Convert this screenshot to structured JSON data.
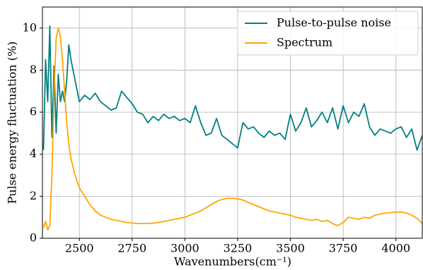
{
  "chart_data": {
    "type": "line",
    "xlabel": "Wavenumbers(cm⁻¹)",
    "ylabel": "Pulse energy fluctuation (%)",
    "x": [
      2330,
      2340,
      2350,
      2360,
      2370,
      2380,
      2390,
      2400,
      2410,
      2420,
      2430,
      2440,
      2450,
      2460,
      2480,
      2500,
      2525,
      2550,
      2575,
      2600,
      2625,
      2650,
      2675,
      2700,
      2725,
      2750,
      2775,
      2800,
      2825,
      2850,
      2875,
      2900,
      2925,
      2950,
      2975,
      3000,
      3025,
      3050,
      3075,
      3100,
      3125,
      3150,
      3175,
      3200,
      3225,
      3250,
      3275,
      3300,
      3325,
      3350,
      3375,
      3400,
      3425,
      3450,
      3475,
      3500,
      3525,
      3550,
      3575,
      3600,
      3625,
      3650,
      3675,
      3700,
      3725,
      3750,
      3775,
      3800,
      3825,
      3850,
      3875,
      3900,
      3925,
      3950,
      3975,
      4000,
      4025,
      4050,
      4075,
      4100,
      4125
    ],
    "series": [
      {
        "name": "Pulse-to-pulse noise",
        "color": "#008080",
        "values": [
          4.2,
          8.5,
          6.5,
          10.1,
          4.8,
          8.2,
          5.0,
          7.8,
          6.5,
          7.0,
          6.5,
          7.5,
          9.2,
          8.5,
          7.5,
          6.5,
          6.8,
          6.6,
          6.9,
          6.5,
          6.3,
          6.1,
          6.2,
          7.0,
          6.7,
          6.4,
          6.0,
          5.9,
          5.5,
          5.8,
          5.6,
          5.9,
          5.7,
          5.8,
          5.6,
          5.7,
          5.5,
          6.3,
          5.5,
          4.9,
          5.0,
          5.7,
          4.9,
          4.7,
          4.5,
          4.3,
          5.5,
          5.2,
          5.3,
          5.0,
          4.8,
          5.1,
          4.9,
          5.0,
          4.7,
          5.9,
          5.1,
          5.5,
          6.2,
          5.3,
          5.6,
          6.0,
          5.5,
          6.2,
          5.2,
          6.3,
          5.5,
          6.0,
          5.8,
          6.4,
          5.3,
          4.9,
          5.2,
          5.1,
          5.0,
          5.2,
          5.3,
          4.8,
          5.2,
          4.2,
          4.9
        ]
      },
      {
        "name": "Spectrum",
        "color": "#ffa500",
        "values": [
          0.5,
          0.8,
          0.4,
          0.6,
          3,
          7,
          9.5,
          10,
          9.6,
          8.5,
          7,
          5.5,
          4.5,
          3.8,
          3.0,
          2.4,
          2.0,
          1.6,
          1.3,
          1.1,
          1.0,
          0.9,
          0.85,
          0.8,
          0.75,
          0.72,
          0.7,
          0.7,
          0.7,
          0.72,
          0.75,
          0.8,
          0.85,
          0.9,
          0.95,
          1.0,
          1.1,
          1.2,
          1.3,
          1.45,
          1.6,
          1.75,
          1.85,
          1.9,
          1.9,
          1.88,
          1.82,
          1.7,
          1.6,
          1.5,
          1.4,
          1.3,
          1.25,
          1.2,
          1.15,
          1.1,
          1.0,
          0.95,
          0.9,
          0.85,
          0.9,
          0.8,
          0.85,
          0.7,
          0.6,
          0.75,
          1.0,
          0.95,
          0.9,
          1.0,
          0.95,
          1.1,
          1.15,
          1.2,
          1.22,
          1.25,
          1.25,
          1.2,
          1.1,
          0.95,
          0.7
        ]
      }
    ],
    "xlim": [
      2325,
      4125
    ],
    "xticks": [
      2500,
      2750,
      3000,
      3250,
      3500,
      3750,
      4000
    ],
    "ylim": [
      0,
      11
    ],
    "yticks": [
      0,
      2,
      4,
      6,
      8,
      10
    ],
    "grid": true,
    "legend": "upper right"
  }
}
